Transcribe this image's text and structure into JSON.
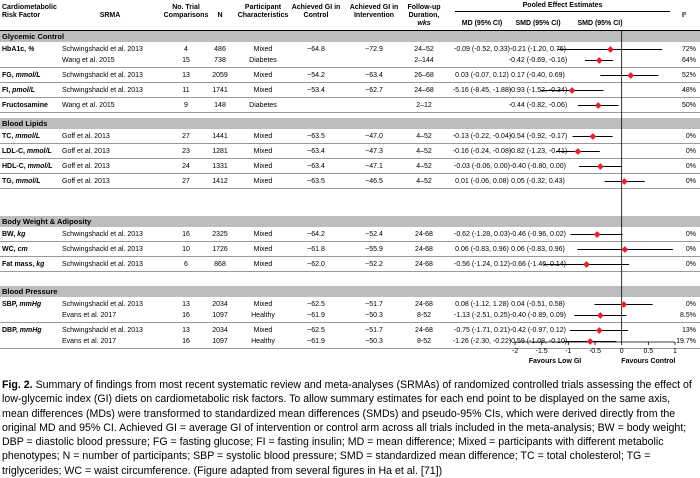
{
  "headers": {
    "risk_factor": "Cardiometabolic Risk Factor",
    "srma": "SRMA",
    "trials": "No. Trial Comparisons",
    "n": "N",
    "participant": "Participant Characteristics",
    "gi_control": "Achieved GI in Control",
    "gi_intervention": "Achieved GI in Intervention",
    "followup": "Follow-up Duration,",
    "followup_unit": "wks",
    "pooled": "Pooled Effect Estimates",
    "md": "MD (95% CI)",
    "smd": "SMD (95% CI)",
    "smd_plot": "SMD (95% CI)",
    "i2": "I²"
  },
  "sections": [
    {
      "title": "Glycemic Control",
      "groups": [
        {
          "factor": "HbA1c, %",
          "factor_bold": "HbA1c,",
          "factor_unit": "%",
          "rows": [
            {
              "srma": "Schwingshackl et al. 2013",
              "trials": "4",
              "n": "486",
              "part": "Mixed",
              "gic": "~64.8",
              "gii": "~72.9",
              "fu": "24–52",
              "md": "-0.09 (-0.52, 0.33)",
              "smd": "-0.21 (-1.20, 0.76)",
              "i2": "72%"
            },
            {
              "srma": "Wang et al. 2015",
              "trials": "15",
              "n": "738",
              "part": "Diabetes",
              "gic": "",
              "gii": "",
              "fu": "2–144",
              "md": "",
              "smd": "-0.42 (-0.69, -0.16)",
              "i2": "64%"
            }
          ]
        },
        {
          "factor": "FG, mmol/L",
          "factor_bold": "FG,",
          "factor_unit": "mmol/L",
          "rows": [
            {
              "srma": "Schwingshackl et al. 2013",
              "trials": "13",
              "n": "2059",
              "part": "Mixed",
              "gic": "~54.2",
              "gii": "~63.4",
              "fu": "26–68",
              "md": "0.03 (-0.07, 0.12)",
              "smd": "0.17 (-0.40, 0.69)",
              "i2": "52%"
            }
          ]
        },
        {
          "factor": "FI, pmol/L",
          "factor_bold": "FI,",
          "factor_unit": "pmol/L",
          "rows": [
            {
              "srma": "Schwingshackl et al. 2013",
              "trials": "11",
              "n": "1741",
              "part": "Mixed",
              "gic": "~53.4",
              "gii": "~62.7",
              "fu": "24–68",
              "md": "-5.16 (-8.45, -1.88)",
              "smd": "-0.93 (-1.52, -0.34)",
              "i2": "48%"
            }
          ]
        },
        {
          "factor": "Fructosamine",
          "factor_bold": "Fructosamine",
          "factor_unit": "",
          "rows": [
            {
              "srma": "Wang et al. 2015",
              "trials": "9",
              "n": "148",
              "part": "Diabetes",
              "gic": "",
              "gii": "",
              "fu": "2–12",
              "md": "",
              "smd": "-0.44 (-0.82, -0.06)",
              "i2": "50%"
            }
          ]
        }
      ]
    },
    {
      "title": "Blood Lipids",
      "groups": [
        {
          "factor": "TC, mmol/L",
          "factor_bold": "TC,",
          "factor_unit": "mmol/L",
          "rows": [
            {
              "srma": "Goff et al. 2013",
              "trials": "27",
              "n": "1441",
              "part": "Mixed",
              "gic": "~63.5",
              "gii": "~47.0",
              "fu": "4–52",
              "md": "-0.13 (-0.22, -0.04)",
              "smd": "-0.54 (-0.92, -0.17)",
              "i2": "0%"
            }
          ]
        },
        {
          "factor": "LDL-C, mmol/L",
          "factor_bold": "LDL-C,",
          "factor_unit": "mmol/L",
          "rows": [
            {
              "srma": "Goff et al. 2013",
              "trials": "23",
              "n": "1281",
              "part": "Mixed",
              "gic": "~63.4",
              "gii": "~47.3",
              "fu": "4–52",
              "md": "-0.16 (-0.24, -0.08)",
              "smd": "-0.82 (-1.23, -0.41)",
              "i2": "0%"
            }
          ]
        },
        {
          "factor": "HDL-C, mmol/L",
          "factor_bold": "HDL-C,",
          "factor_unit": "mmol/L",
          "rows": [
            {
              "srma": "Goff et al. 2013",
              "trials": "24",
              "n": "1331",
              "part": "Mixed",
              "gic": "~63.4",
              "gii": "~47.1",
              "fu": "4–52",
              "md": "-0.03 (-0.06, 0.00)",
              "smd": "-0.40 (-0.80, 0.00)",
              "i2": "0%"
            }
          ]
        },
        {
          "factor": "TG, mmol/L",
          "factor_bold": "TG,",
          "factor_unit": "mmol/L",
          "rows": [
            {
              "srma": "Goff et al. 2013",
              "trials": "27",
              "n": "1412",
              "part": "Mixed",
              "gic": "~63.5",
              "gii": "~46.5",
              "fu": "4–52",
              "md": "0.01 (-0.06, 0.08)",
              "smd": "0.05 (-0.32, 0.43)",
              "i2": "0%"
            }
          ]
        }
      ]
    },
    {
      "title": "Body Weight & Adiposity",
      "groups": [
        {
          "factor": "BW, kg",
          "factor_bold": "BW,",
          "factor_unit": "kg",
          "rows": [
            {
              "srma": "Schwingshackl et al. 2013",
              "trials": "16",
              "n": "2325",
              "part": "Mixed",
              "gic": "~64.2",
              "gii": "~52.4",
              "fu": "24-68",
              "md": "-0.62 (-1.28, 0.03)",
              "smd": "-0.46 (-0.96, 0.02)",
              "i2": "0%"
            }
          ]
        },
        {
          "factor": "WC, cm",
          "factor_bold": "WC,",
          "factor_unit": "cm",
          "rows": [
            {
              "srma": "Schwingshackl et al. 2013",
              "trials": "10",
              "n": "1726",
              "part": "Mixed",
              "gic": "~61.8",
              "gii": "~55.9",
              "fu": "24-68",
              "md": "0.06 (-0.83, 0.96)",
              "smd": "0.06 (-0.83, 0.96)",
              "i2": "0%"
            }
          ]
        },
        {
          "factor": "Fat mass, kg",
          "factor_bold": "Fat mass,",
          "factor_unit": "kg",
          "rows": [
            {
              "srma": "Schwingshackl et al. 2013",
              "trials": "6",
              "n": "868",
              "part": "Mixed",
              "gic": "~62.0",
              "gii": "~52.2",
              "fu": "24-68",
              "md": "-0.56 (-1.24, 0.12)",
              "smd": "-0.66 (-1.46, 0.14)",
              "i2": "0%"
            }
          ]
        }
      ]
    },
    {
      "title": "Blood Pressure",
      "groups": [
        {
          "factor": "SBP, mmHg",
          "factor_bold": "SBP,",
          "factor_unit": "mmHg",
          "rows": [
            {
              "srma": "Schwingshackl et al. 2013",
              "trials": "13",
              "n": "2034",
              "part": "Mixed",
              "gic": "~62.5",
              "gii": "~51.7",
              "fu": "24-68",
              "md": "0.08 (-1.12, 1.28)",
              "smd": "0.04 (-0.51, 0.58)",
              "i2": "0%"
            },
            {
              "srma": "Evans et al. 2017",
              "trials": "16",
              "n": "1097",
              "part": "Healthy",
              "gic": "~61.9",
              "gii": "~50.3",
              "fu": "8-52",
              "md": "-1.13 (-2.51, 0.25)",
              "smd": "-0.40 (-0.89, 0.09)",
              "i2": "8.5%"
            }
          ]
        },
        {
          "factor": "DBP, mmHg",
          "factor_bold": "DBP,",
          "factor_unit": "mmHg",
          "rows": [
            {
              "srma": "Schwingshackl et al. 2013",
              "trials": "13",
              "n": "2034",
              "part": "Mixed",
              "gic": "~62.5",
              "gii": "~51.7",
              "fu": "24-68",
              "md": "-0.75 (-1.71, 0.21)",
              "smd": "-0.42 (-0.97, 0.12)",
              "i2": "13%"
            },
            {
              "srma": "Evans et al. 2017",
              "trials": "16",
              "n": "1097",
              "part": "Healthy",
              "gic": "~61.9",
              "gii": "~50.3",
              "fu": "8-52",
              "md": "-1.26 (-2.30, -0.22)",
              "smd": "-0.59 (-1.08, -0.10)",
              "i2": "19.7%"
            }
          ]
        }
      ]
    }
  ],
  "chart_data": {
    "type": "forest",
    "xlim": [
      -2,
      1
    ],
    "ticks": [
      "-2",
      "-1.5",
      "-1",
      "-0.5",
      "0",
      "0.5",
      "1"
    ],
    "tick_values": [
      -2,
      -1.5,
      -1,
      -0.5,
      0,
      0.5,
      1
    ],
    "left_label": "Favours Low GI",
    "right_label": "Favours Control",
    "marker_color": "#e8202a",
    "points": [
      {
        "row": 0,
        "est": -0.21,
        "lo": -1.2,
        "hi": 0.76
      },
      {
        "row": 1,
        "est": -0.42,
        "lo": -0.69,
        "hi": -0.16
      },
      {
        "row": 2,
        "est": 0.17,
        "lo": -0.4,
        "hi": 0.69
      },
      {
        "row": 3,
        "est": -0.93,
        "lo": -1.52,
        "hi": -0.34
      },
      {
        "row": 4,
        "est": -0.44,
        "lo": -0.82,
        "hi": -0.06
      },
      {
        "row": 5,
        "est": -0.54,
        "lo": -0.92,
        "hi": -0.17
      },
      {
        "row": 6,
        "est": -0.82,
        "lo": -1.23,
        "hi": -0.41
      },
      {
        "row": 7,
        "est": -0.4,
        "lo": -0.8,
        "hi": 0.0
      },
      {
        "row": 8,
        "est": 0.05,
        "lo": -0.32,
        "hi": 0.43
      },
      {
        "row": 9,
        "est": -0.46,
        "lo": -0.96,
        "hi": 0.02
      },
      {
        "row": 10,
        "est": 0.06,
        "lo": -0.83,
        "hi": 0.96
      },
      {
        "row": 11,
        "est": -0.66,
        "lo": -1.46,
        "hi": 0.14
      },
      {
        "row": 12,
        "est": 0.04,
        "lo": -0.51,
        "hi": 0.58
      },
      {
        "row": 13,
        "est": -0.4,
        "lo": -0.89,
        "hi": 0.09
      },
      {
        "row": 14,
        "est": -0.42,
        "lo": -0.97,
        "hi": 0.12
      },
      {
        "row": 15,
        "est": -0.59,
        "lo": -1.08,
        "hi": -0.1
      }
    ]
  },
  "caption": {
    "label": "Fig. 2.",
    "text": "Summary of findings from most recent systematic review and meta-analyses (SRMAs) of randomized controlled trials assessing the effect of low-glycemic index (GI) diets on cardiometabolic risk factors. To allow summary estimates for each end point to be displayed on the same axis, mean differences (MDs) were transformed to standardized mean differences (SMDs) and pseudo-95% CIs, which were derived directly from the original MD and 95% CI. Achieved GI = average GI of intervention or control arm across all trials included in the meta-analysis; BW = body weight; DBP = diastolic blood pressure; FG = fasting glucose; FI = fasting insulin; MD = mean difference; Mixed = participants with different metabolic phenotypes; N = number of participants; SBP = systolic blood pressure; SMD = standardized mean difference; TC = total cholesterol; TG = triglycerides; WC = waist circumference. (Figure adapted from several figures in Ha et al. [71])"
  }
}
